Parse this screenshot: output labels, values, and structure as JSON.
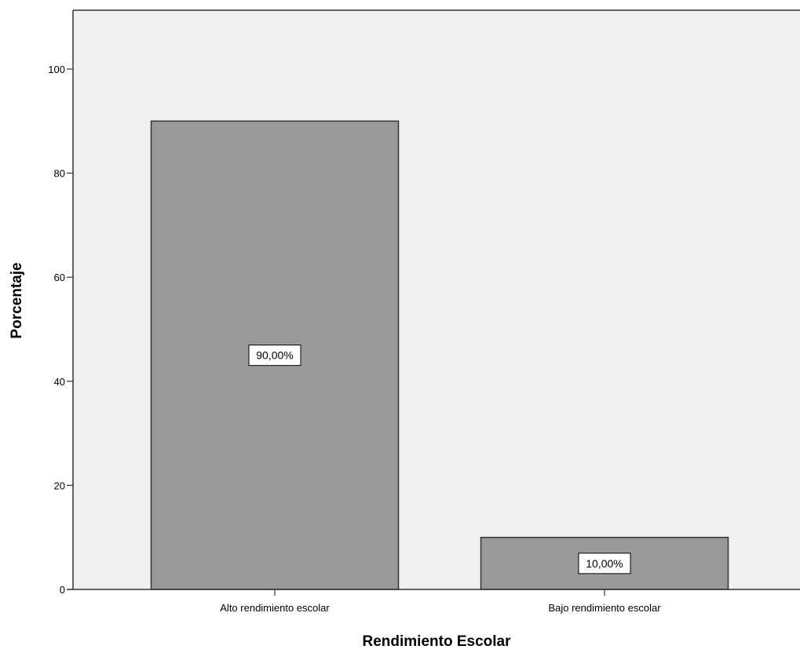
{
  "chart_data": {
    "type": "bar",
    "categories": [
      "Alto rendimiento escolar",
      "Bajo rendimiento escolar"
    ],
    "values": [
      90,
      10
    ],
    "data_labels": [
      "90,00%",
      "10,00%"
    ],
    "xlabel": "Rendimiento Escolar",
    "ylabel": "Porcentaje",
    "ylim": [
      0,
      111
    ],
    "yticks": [
      0,
      20,
      40,
      60,
      80,
      100
    ],
    "grid": false,
    "colors": {
      "plot_background": "#f0f0f0",
      "bar_fill": "#999999",
      "bar_stroke": "#333333",
      "axis": "#333333",
      "label_box": "#ffffff"
    }
  }
}
